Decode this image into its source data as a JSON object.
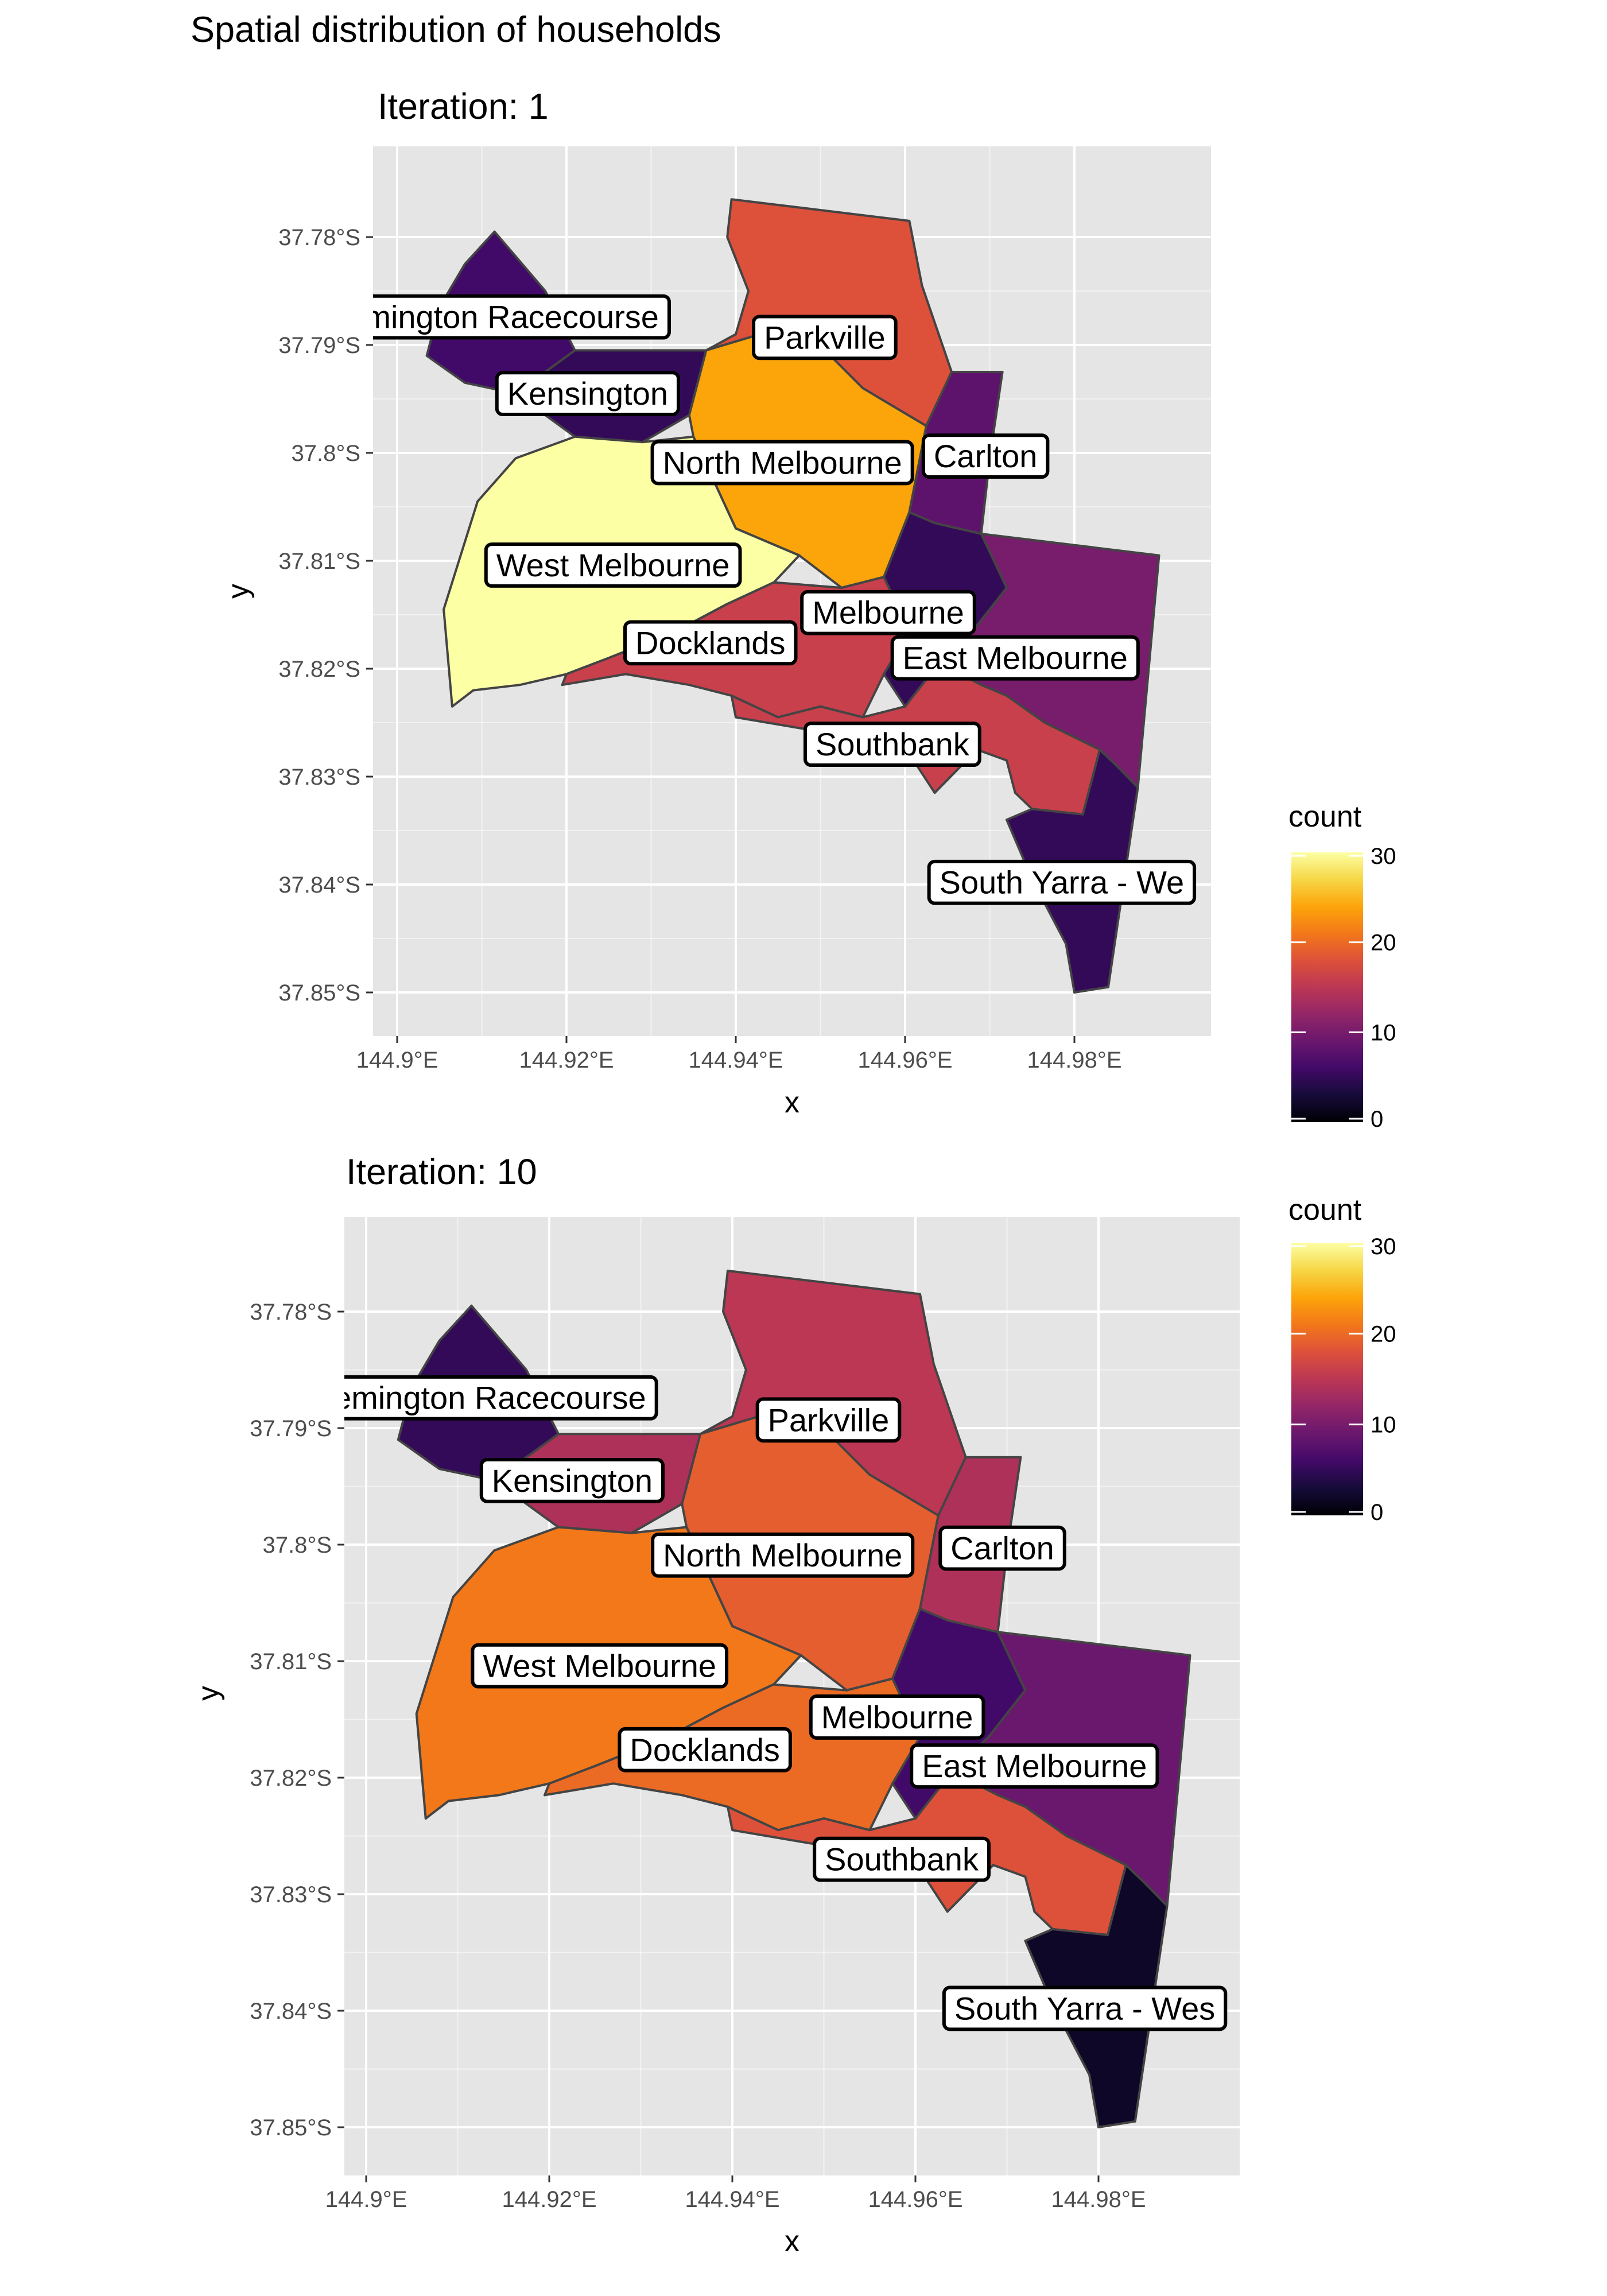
{
  "title": "Spatial distribution of households",
  "fill_legend": {
    "title": "count",
    "breaks": [
      "0",
      "10",
      "20",
      "30"
    ],
    "scale": "inferno",
    "range": [
      0,
      30
    ]
  },
  "colors": {
    "panel_bg": "#e5e5e5",
    "grid": "#ffffff",
    "border": "#444444",
    "tick_text": "#4d4d4d"
  },
  "axis": {
    "x_title": "x",
    "y_title": "y",
    "x_ticks": [
      "144.9°E",
      "144.92°E",
      "144.94°E",
      "144.96°E",
      "144.98°E"
    ],
    "y_ticks": [
      "37.78°S",
      "37.79°S",
      "37.8°S",
      "37.81°S",
      "37.82°S",
      "37.83°S",
      "37.84°S",
      "37.85°S"
    ]
  },
  "regions": [
    "Flemington Racecourse",
    "Kensington",
    "Parkville",
    "North Melbourne",
    "Carlton",
    "West Melbourne",
    "Docklands",
    "Melbourne",
    "East Melbourne",
    "Southbank",
    "South Yarra - West"
  ],
  "region_labels": {
    "Flemington Racecourse": "mington Racecourse",
    "Kensington": "Kensington",
    "Parkville": "Parkville",
    "North Melbourne": "North Melbourne",
    "Carlton": "Carlton",
    "West Melbourne": "West Melbourne",
    "Docklands": "Docklands",
    "Melbourne": "Melbourne",
    "East Melbourne": "East Melbourne",
    "Southbank": "Southbank",
    "South Yarra - West": "South Yarra - We"
  },
  "region_labels_2": {
    "Flemington Racecourse": "emington Racecourse",
    "South Yarra - West": "South Yarra - Wes"
  },
  "panels": [
    {
      "subtitle": "Iteration: 1",
      "counts": {
        "Flemington Racecourse": 6,
        "Kensington": 5,
        "Parkville": 18,
        "North Melbourne": 24,
        "Carlton": 8,
        "West Melbourne": 30,
        "Docklands": 16,
        "Melbourne": 5,
        "East Melbourne": 10,
        "Southbank": 16,
        "South Yarra - West": 5
      }
    },
    {
      "subtitle": "Iteration: 10",
      "counts": {
        "Flemington Racecourse": 5,
        "Kensington": 14,
        "Parkville": 15,
        "North Melbourne": 19,
        "Carlton": 14,
        "West Melbourne": 21,
        "Docklands": 20,
        "Melbourne": 6,
        "East Melbourne": 9,
        "Southbank": 18,
        "South Yarra - West": 2
      }
    }
  ]
}
